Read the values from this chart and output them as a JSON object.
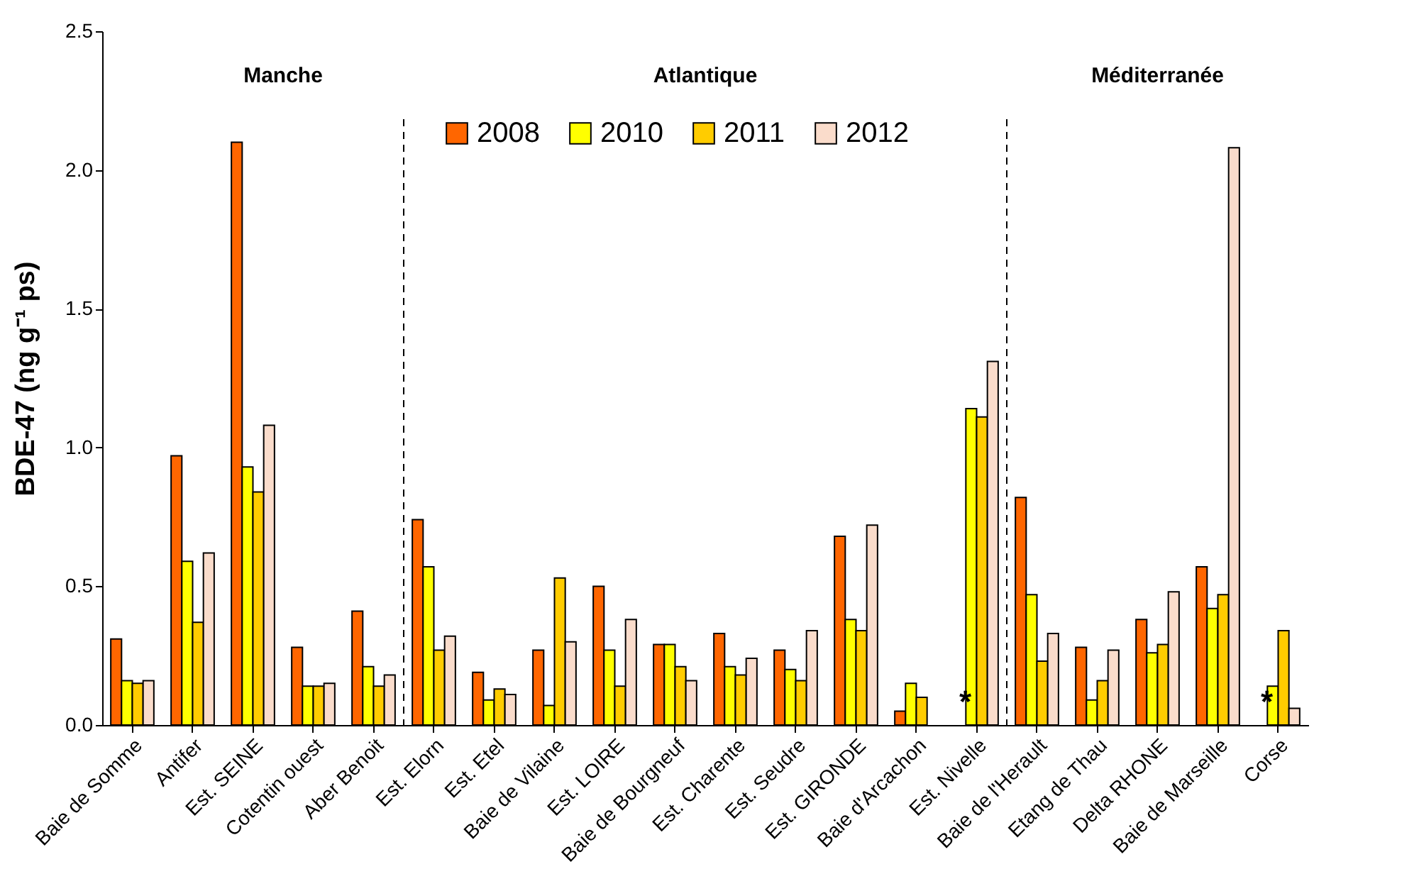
{
  "chart_data": {
    "type": "bar",
    "ylabel": "BDE-47 (ng g⁻¹ ps)",
    "categories": [
      "Baie de Somme",
      "Antifer",
      "Est. SEINE",
      "Cotentin ouest",
      "Aber Benoit",
      "Est. Elorn",
      "Est. Etel",
      "Baie de Vilaine",
      "Est. LOIRE",
      "Baie de Bourgneuf",
      "Est. Charente",
      "Est. Seudre",
      "Est. GIRONDE",
      "Baie d'Arcachon",
      "Est. Nivelle",
      "Baie de l'Herault",
      "Etang de Thau",
      "Delta RHONE",
      "Baie de Marseille",
      "Corse"
    ],
    "series": [
      {
        "name": "2008",
        "color": "#ff6600",
        "values": [
          0.31,
          0.97,
          2.1,
          0.28,
          0.41,
          0.74,
          0.19,
          0.27,
          0.5,
          0.29,
          0.33,
          0.27,
          0.68,
          0.05,
          null,
          0.82,
          0.28,
          0.38,
          0.57,
          null
        ]
      },
      {
        "name": "2010",
        "color": "#ffff00",
        "values": [
          0.16,
          0.59,
          0.93,
          0.14,
          0.21,
          0.57,
          0.09,
          0.07,
          0.27,
          0.29,
          0.21,
          0.2,
          0.38,
          0.15,
          1.14,
          0.47,
          0.09,
          0.26,
          0.42,
          0.14
        ]
      },
      {
        "name": "2011",
        "color": "#ffcc00",
        "values": [
          0.15,
          0.37,
          0.84,
          0.14,
          0.14,
          0.27,
          0.13,
          0.53,
          0.14,
          0.21,
          0.18,
          0.16,
          0.34,
          0.1,
          1.11,
          0.23,
          0.16,
          0.29,
          0.47,
          0.34
        ]
      },
      {
        "name": "2012",
        "color": "#fadccb",
        "values": [
          0.16,
          0.62,
          1.08,
          0.15,
          0.18,
          0.32,
          0.11,
          0.3,
          0.38,
          0.16,
          0.24,
          0.34,
          0.72,
          null,
          1.31,
          0.33,
          0.27,
          0.48,
          2.08,
          0.06
        ]
      }
    ],
    "ylim": [
      0,
      2.5
    ],
    "yticks": [
      {
        "value": 0,
        "label": "0.0"
      },
      0.5,
      {
        "value": 1,
        "label": "1.0"
      },
      1.5,
      {
        "value": 2,
        "label": "2.0"
      },
      2.5
    ],
    "legend": "top",
    "annotations": [
      "Manche",
      "Atlantique",
      "Méditerranée",
      {
        "text": "*",
        "x": "Est. Nivelle",
        "y": 0.02
      },
      {
        "text": "*",
        "x": "Corse",
        "y": 0.02
      }
    ]
  }
}
